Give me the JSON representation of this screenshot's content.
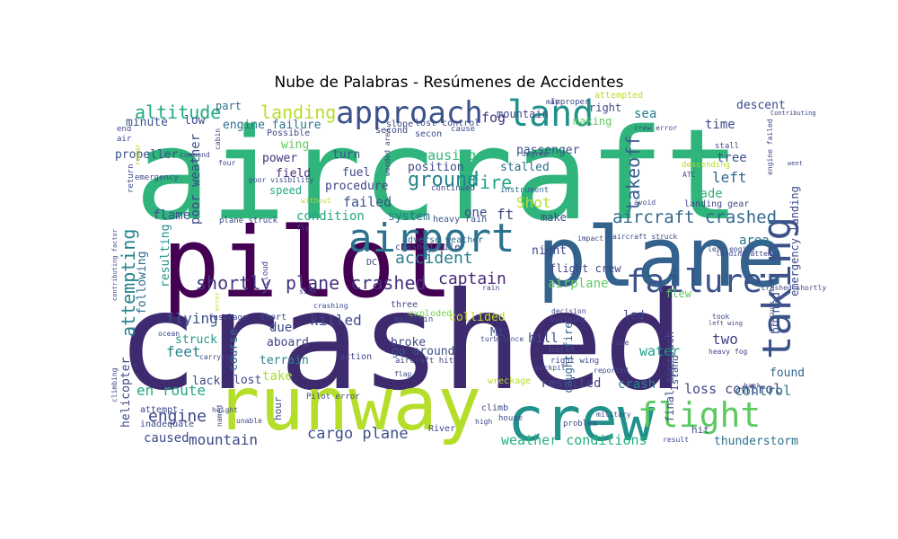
{
  "title": "Nube de Palabras - Resúmenes de Accidentes",
  "words": [
    {
      "text": "aircraft",
      "color": "#2fb47c"
    },
    {
      "text": "crashed",
      "color": "#3e2a6e"
    },
    {
      "text": "pilot",
      "color": "#440154"
    },
    {
      "text": "plane",
      "color": "#33628d"
    },
    {
      "text": "runway",
      "color": "#b5de2b"
    },
    {
      "text": "crew",
      "color": "#21918c"
    },
    {
      "text": "airport",
      "color": "#2c728e"
    },
    {
      "text": "approach",
      "color": "#3b528b"
    },
    {
      "text": "land",
      "color": "#21918c"
    },
    {
      "text": "failure",
      "color": "#3b528b"
    },
    {
      "text": "flight",
      "color": "#5ec962"
    },
    {
      "text": "taking",
      "color": "#3b528b"
    },
    {
      "text": "plane crashed",
      "color": "#46327e"
    },
    {
      "text": "aircraft crashed",
      "color": "#31688e"
    },
    {
      "text": "shortly",
      "color": "#443983"
    },
    {
      "text": "attempting",
      "color": "#25838e"
    },
    {
      "text": "landing",
      "color": "#b8de29"
    },
    {
      "text": "altitude",
      "color": "#22a884"
    },
    {
      "text": "ground",
      "color": "#26828e"
    },
    {
      "text": "fire",
      "color": "#20a486"
    },
    {
      "text": "accident",
      "color": "#287d8e"
    },
    {
      "text": "captain",
      "color": "#482878"
    },
    {
      "text": "killed",
      "color": "#3e4a89"
    },
    {
      "text": "flying",
      "color": "#3b528b"
    },
    {
      "text": "feet",
      "color": "#25848e"
    },
    {
      "text": "engine",
      "color": "#3e4989"
    },
    {
      "text": "en route",
      "color": "#22a884"
    },
    {
      "text": "mountain",
      "color": "#3e4a89"
    },
    {
      "text": "cargo plane",
      "color": "#3b528b"
    },
    {
      "text": "weather conditions",
      "color": "#2ab07f"
    },
    {
      "text": "caused",
      "color": "#3e4a89"
    },
    {
      "text": "crash",
      "color": "#27808e"
    },
    {
      "text": "control",
      "color": "#2c728e"
    },
    {
      "text": "loss control",
      "color": "#414487"
    },
    {
      "text": "resulted",
      "color": "#404688"
    },
    {
      "text": "water",
      "color": "#1fa187"
    },
    {
      "text": "two",
      "color": "#414487"
    },
    {
      "text": "area",
      "color": "#2c728e"
    },
    {
      "text": "takeoff",
      "color": "#355e8d"
    },
    {
      "text": "left",
      "color": "#31688e"
    },
    {
      "text": "made",
      "color": "#34b679"
    },
    {
      "text": "tree",
      "color": "#3b528b"
    },
    {
      "text": "time",
      "color": "#3e4989"
    },
    {
      "text": "descent",
      "color": "#3e4989"
    },
    {
      "text": "sea",
      "color": "#287d8e"
    },
    {
      "text": "fog",
      "color": "#46327e"
    },
    {
      "text": "passenger",
      "color": "#3b528b"
    },
    {
      "text": "causing",
      "color": "#35b779"
    },
    {
      "text": "position",
      "color": "#3e4989"
    },
    {
      "text": "stalled",
      "color": "#2e6f8e"
    },
    {
      "text": "Shot",
      "color": "#b5de2b"
    },
    {
      "text": "ft",
      "color": "#3e4989"
    },
    {
      "text": "one",
      "color": "#3e4989"
    },
    {
      "text": "condition",
      "color": "#22a884"
    },
    {
      "text": "system",
      "color": "#2c728e"
    },
    {
      "text": "procedure",
      "color": "#414487"
    },
    {
      "text": "failed",
      "color": "#3b528b"
    },
    {
      "text": "fuel",
      "color": "#3e4989"
    },
    {
      "text": "turn",
      "color": "#3b528b"
    },
    {
      "text": "field",
      "color": "#472d7b"
    },
    {
      "text": "speed",
      "color": "#22a884"
    },
    {
      "text": "power",
      "color": "#46327e"
    },
    {
      "text": "wing",
      "color": "#5ec962"
    },
    {
      "text": "engine failure",
      "color": "#2c728e"
    },
    {
      "text": "minute",
      "color": "#3b528b"
    },
    {
      "text": "low",
      "color": "#3e4989"
    },
    {
      "text": "part",
      "color": "#2c728e"
    },
    {
      "text": "poor weather",
      "color": "#3e4989"
    },
    {
      "text": "propeller",
      "color": "#3b528b"
    },
    {
      "text": "flame",
      "color": "#3b528b"
    },
    {
      "text": "resulting",
      "color": "#21918c"
    },
    {
      "text": "following",
      "color": "#31688e"
    },
    {
      "text": "helicopter",
      "color": "#3e4989"
    },
    {
      "text": "struck",
      "color": "#1f988b"
    },
    {
      "text": "due",
      "color": "#3e4989"
    },
    {
      "text": "aboard",
      "color": "#414487"
    },
    {
      "text": "terrain",
      "color": "#287d8e"
    },
    {
      "text": "take",
      "color": "#a8db34"
    },
    {
      "text": "lost",
      "color": "#3e4989"
    },
    {
      "text": "lack",
      "color": "#3e4989"
    },
    {
      "text": "course",
      "color": "#31688e"
    },
    {
      "text": "collided",
      "color": "#c2df23"
    },
    {
      "text": "broke",
      "color": "#3e4989"
    },
    {
      "text": "go around",
      "color": "#3b528b"
    },
    {
      "text": "hill",
      "color": "#3e4989"
    },
    {
      "text": "Mt",
      "color": "#3e4989"
    },
    {
      "text": "airplane",
      "color": "#5ec962"
    },
    {
      "text": "caught fire",
      "color": "#31688e"
    },
    {
      "text": "led",
      "color": "#3e4989"
    },
    {
      "text": "burned",
      "color": "#3b528b"
    },
    {
      "text": "found",
      "color": "#31688e"
    },
    {
      "text": "flew",
      "color": "#5ec962"
    },
    {
      "text": "hit",
      "color": "#3e4989"
    },
    {
      "text": "thunderstorm",
      "color": "#2c728e"
    },
    {
      "text": "emergency landing",
      "color": "#3e4989"
    },
    {
      "text": "make",
      "color": "#3e4989"
    },
    {
      "text": "night",
      "color": "#3e4989"
    },
    {
      "text": "flight crew",
      "color": "#414487"
    },
    {
      "text": "heavy rain",
      "color": "#3b528b"
    },
    {
      "text": "adverse weather",
      "color": "#31688e"
    },
    {
      "text": "crashed mile",
      "color": "#3e4989"
    },
    {
      "text": "exploded",
      "color": "#7ad151"
    },
    {
      "text": "three",
      "color": "#3e4989"
    },
    {
      "text": "DC",
      "color": "#3e4989"
    },
    {
      "text": "right",
      "color": "#3e4989"
    },
    {
      "text": "making",
      "color": "#5ec962"
    },
    {
      "text": "attempted",
      "color": "#b5de2b"
    },
    {
      "text": "Improper",
      "color": "#3e4989"
    },
    {
      "text": "secon",
      "color": "#3e4989"
    },
    {
      "text": "slope",
      "color": "#3e4989"
    },
    {
      "text": "lost control",
      "color": "#3e4989"
    },
    {
      "text": "cause",
      "color": "#3e4989"
    },
    {
      "text": "second",
      "color": "#3e4989"
    },
    {
      "text": "Possible",
      "color": "#3e4989"
    },
    {
      "text": "stall",
      "color": "#3e4989"
    },
    {
      "text": "landing gear",
      "color": "#3e4989"
    },
    {
      "text": "descending",
      "color": "#b5de2b"
    },
    {
      "text": "air",
      "color": "#3e4989"
    },
    {
      "text": "end",
      "color": "#3e4989"
    },
    {
      "text": "emergency",
      "color": "#3e4989"
    },
    {
      "text": "return",
      "color": "#3e4989"
    },
    {
      "text": "instrument",
      "color": "#31688e"
    },
    {
      "text": "continued",
      "color": "#3e4989"
    },
    {
      "text": "mountain",
      "color": "#3e4989"
    },
    {
      "text": "ATC",
      "color": "#3e4989"
    },
    {
      "text": "avoid",
      "color": "#3e4989"
    },
    {
      "text": "right wing",
      "color": "#3e4989"
    },
    {
      "text": "final approach",
      "color": "#3e4989"
    },
    {
      "text": "Island",
      "color": "#3e4989"
    },
    {
      "text": "burst",
      "color": "#3e4989"
    },
    {
      "text": "cockpit",
      "color": "#3e4989"
    },
    {
      "text": "decision",
      "color": "#3e4989"
    },
    {
      "text": "building",
      "color": "#3e4989"
    },
    {
      "text": "wreckage",
      "color": "#b5de2b"
    },
    {
      "text": "climb",
      "color": "#3e4989"
    },
    {
      "text": "house",
      "color": "#3e4989"
    },
    {
      "text": "River",
      "color": "#3e4989"
    },
    {
      "text": "high",
      "color": "#3e4989"
    },
    {
      "text": "problem",
      "color": "#3e4989"
    },
    {
      "text": "military",
      "color": "#3e4989"
    },
    {
      "text": "attempt",
      "color": "#3e4989"
    },
    {
      "text": "inadequate",
      "color": "#3e4989"
    },
    {
      "text": "height",
      "color": "#3e4989"
    },
    {
      "text": "unable",
      "color": "#3e4989"
    },
    {
      "text": "named",
      "color": "#3e4989"
    },
    {
      "text": "hour",
      "color": "#3e4989"
    },
    {
      "text": "Pilot error",
      "color": "#3e4989"
    },
    {
      "text": "aircraft hit",
      "color": "#3e4989"
    },
    {
      "text": "flap",
      "color": "#3e4989"
    },
    {
      "text": "action",
      "color": "#3e4989"
    },
    {
      "text": "short",
      "color": "#3e4989"
    },
    {
      "text": "maintain",
      "color": "#3e4989"
    },
    {
      "text": "fuselage",
      "color": "#3e4989"
    },
    {
      "text": "side",
      "color": "#3e4989"
    },
    {
      "text": "crashing",
      "color": "#3e4989"
    },
    {
      "text": "carrying",
      "color": "#3e4989"
    },
    {
      "text": "ocean",
      "color": "#3e4989"
    },
    {
      "text": "four",
      "color": "#3e4989"
    },
    {
      "text": "cabin",
      "color": "#3e4989"
    },
    {
      "text": "command",
      "color": "#3e4989"
    },
    {
      "text": "radar",
      "color": "#b5de2b"
    },
    {
      "text": "plane struck",
      "color": "#3e4989"
    },
    {
      "text": "without",
      "color": "#b5de2b"
    },
    {
      "text": "fly",
      "color": "#3e4989"
    },
    {
      "text": "cloud",
      "color": "#3e4989"
    },
    {
      "text": "poor visibility",
      "color": "#3e4989"
    },
    {
      "text": "wooded area",
      "color": "#3e4989"
    },
    {
      "text": "degree",
      "color": "#3e4989"
    },
    {
      "text": "crew error",
      "color": "#3e4989"
    },
    {
      "text": "engine failed",
      "color": "#3e4989"
    },
    {
      "text": "landing attempt",
      "color": "#3e4989"
    },
    {
      "text": "left engine",
      "color": "#3e4989"
    },
    {
      "text": "Crashed shortly",
      "color": "#3e4989"
    },
    {
      "text": "took",
      "color": "#3e4989"
    },
    {
      "text": "left wing",
      "color": "#3e4989"
    },
    {
      "text": "heavy fog",
      "color": "#3e4989"
    },
    {
      "text": "reported",
      "color": "#3e4989"
    },
    {
      "text": "back",
      "color": "#3e4989"
    },
    {
      "text": "struck tree",
      "color": "#3e4989"
    },
    {
      "text": "aircraft struck",
      "color": "#3e4989"
    },
    {
      "text": "impact",
      "color": "#3e4989"
    },
    {
      "text": "use",
      "color": "#3e4989"
    },
    {
      "text": "result",
      "color": "#3e4989"
    },
    {
      "text": "rain",
      "color": "#3e4989"
    },
    {
      "text": "climbing",
      "color": "#3e4989"
    },
    {
      "text": "contributing factor",
      "color": "#3e4989"
    },
    {
      "text": "turbulence",
      "color": "#3e4989"
    },
    {
      "text": "may",
      "color": "#3e4989"
    },
    {
      "text": "Contributing",
      "color": "#3e4989"
    },
    {
      "text": "went",
      "color": "#3e4989"
    },
    {
      "text": "error",
      "color": "#b5de2b"
    },
    {
      "text": "nose",
      "color": "#3e4989"
    }
  ]
}
